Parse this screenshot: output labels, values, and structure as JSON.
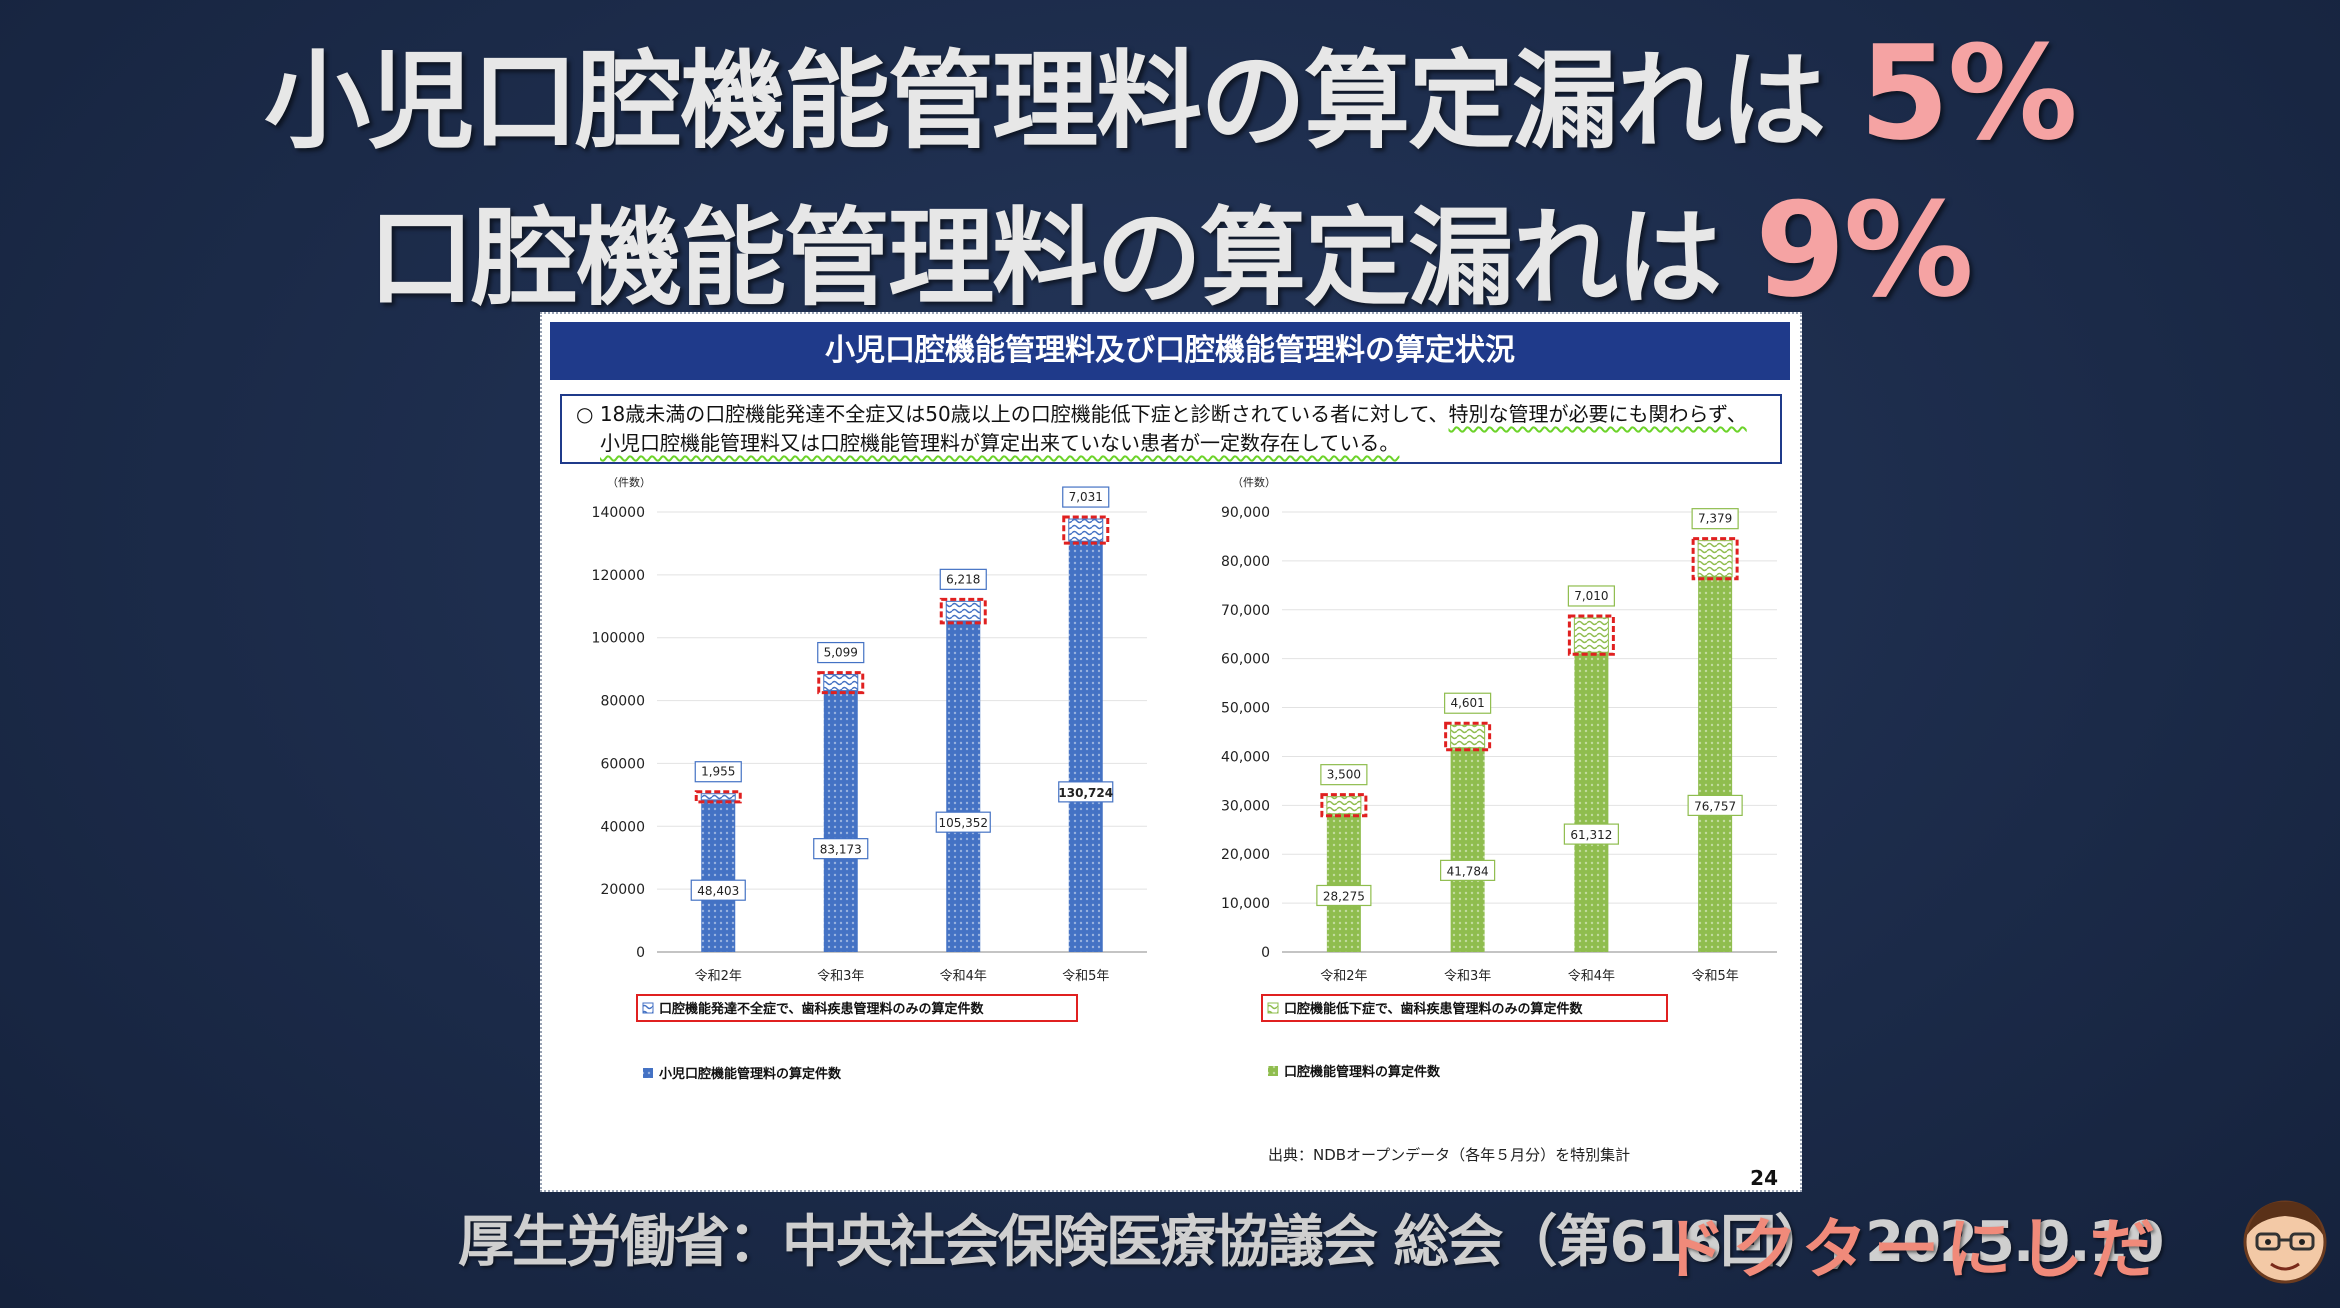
{
  "headline": {
    "line1_text": "小児口腔機能管理料の算定漏れは ",
    "line1_pct": "5%",
    "line2_text": "口腔機能管理料の算定漏れは ",
    "line2_pct": "9%"
  },
  "panel": {
    "title": "小児口腔機能管理料及び口腔機能管理料の算定状況",
    "note_marker": "○",
    "note_line1_a": "18歳未満の口腔機能発達不全症又は50歳以上の口腔機能低下症と診断されている者に対して、",
    "note_line1_b": "特別な管理が必要にも関わらず、",
    "note_line2": "小児口腔機能管理料又は口腔機能管理料が算定出来ていない患者が一定数存在している。",
    "source": "出典：NDBオープンデータ（各年５月分）を特別集計",
    "page_number": "24"
  },
  "colors": {
    "blue_bar": "#4472c4",
    "green_bar": "#8fbd4e",
    "highlight_box": "#e02020",
    "title_bg": "#1f3a8a"
  },
  "chart_data": [
    {
      "type": "bar",
      "stacked": true,
      "unit_label": "（件数）",
      "categories": [
        "令和2年",
        "令和3年",
        "令和4年",
        "令和5年"
      ],
      "ylim": [
        0,
        140000
      ],
      "yticks": [
        0,
        20000,
        40000,
        60000,
        80000,
        100000,
        120000,
        140000
      ],
      "ytick_labels": [
        "0",
        "20000",
        "40000",
        "60000",
        "80000",
        "100000",
        "120000",
        "140000"
      ],
      "series": [
        {
          "name": "小児口腔機能管理料の算定件数",
          "values": [
            48403,
            83173,
            105352,
            130724
          ],
          "labels": [
            "48,403",
            "83,173",
            "105,352",
            "130,724"
          ]
        },
        {
          "name": "口腔機能発達不全症で、歯科疾患管理料のみの算定件数",
          "values": [
            1955,
            5099,
            6218,
            7031
          ],
          "labels": [
            "1,955",
            "5,099",
            "6,218",
            "7,031"
          ]
        }
      ],
      "legend_top": "口腔機能発達不全症で、歯科疾患管理料のみの算定件数",
      "legend_bottom": "小児口腔機能管理料の算定件数"
    },
    {
      "type": "bar",
      "stacked": true,
      "unit_label": "（件数）",
      "categories": [
        "令和2年",
        "令和3年",
        "令和4年",
        "令和5年"
      ],
      "ylim": [
        0,
        90000
      ],
      "yticks": [
        0,
        10000,
        20000,
        30000,
        40000,
        50000,
        60000,
        70000,
        80000,
        90000
      ],
      "ytick_labels": [
        "0",
        "10,000",
        "20,000",
        "30,000",
        "40,000",
        "50,000",
        "60,000",
        "70,000",
        "80,000",
        "90,000"
      ],
      "series": [
        {
          "name": "口腔機能管理料の算定件数",
          "values": [
            28275,
            41784,
            61312,
            76757
          ],
          "labels": [
            "28,275",
            "41,784",
            "61,312",
            "76,757"
          ]
        },
        {
          "name": "口腔機能低下症で、歯科疾患管理料のみの算定件数",
          "values": [
            3500,
            4601,
            7010,
            7379
          ],
          "labels": [
            "3,500",
            "4,601",
            "7,010",
            "7,379"
          ]
        }
      ],
      "legend_top": "口腔機能低下症で、歯科疾患管理料のみの算定件数",
      "legend_bottom": "口腔機能管理料の算定件数"
    }
  ],
  "footer": {
    "citation": "厚生労働省：中央社会保険医療協議会 総会（第616回）, 2025.9.10",
    "brand": "ドクターにしだ"
  }
}
